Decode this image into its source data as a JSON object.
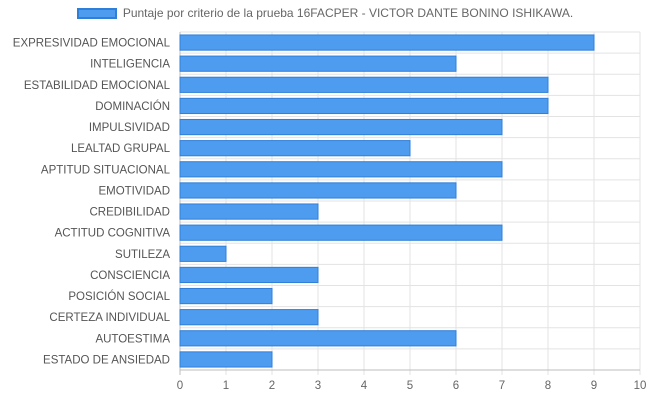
{
  "chart_data": {
    "type": "bar",
    "orientation": "horizontal",
    "categories": [
      "EXPRESIVIDAD EMOCIONAL",
      "INTELIGENCIA",
      "ESTABILIDAD EMOCIONAL",
      "DOMINACIÓN",
      "IMPULSIVIDAD",
      "LEALTAD GRUPAL",
      "APTITUD SITUACIONAL",
      "EMOTIVIDAD",
      "CREDIBILIDAD",
      "ACTITUD COGNITIVA",
      "SUTILEZA",
      "CONSCIENCIA",
      "POSICIÓN SOCIAL",
      "CERTEZA INDIVIDUAL",
      "AUTOESTIMA",
      "ESTADO DE ANSIEDAD"
    ],
    "series": [
      {
        "name": "Puntaje por criterio de la prueba 16FACPER - VICTOR DANTE BONINO ISHIKAWA.",
        "values": [
          9,
          6,
          8,
          8,
          7,
          5,
          7,
          6,
          3,
          7,
          1,
          3,
          2,
          3,
          6,
          2
        ],
        "color": "#4e9cf0",
        "border_color": "#2f7fd8"
      }
    ],
    "xlim": [
      0,
      10
    ],
    "xticks": [
      "0",
      "1",
      "2",
      "3",
      "4",
      "5",
      "6",
      "7",
      "8",
      "9",
      "10"
    ],
    "grid": true,
    "legend_position": "top"
  }
}
